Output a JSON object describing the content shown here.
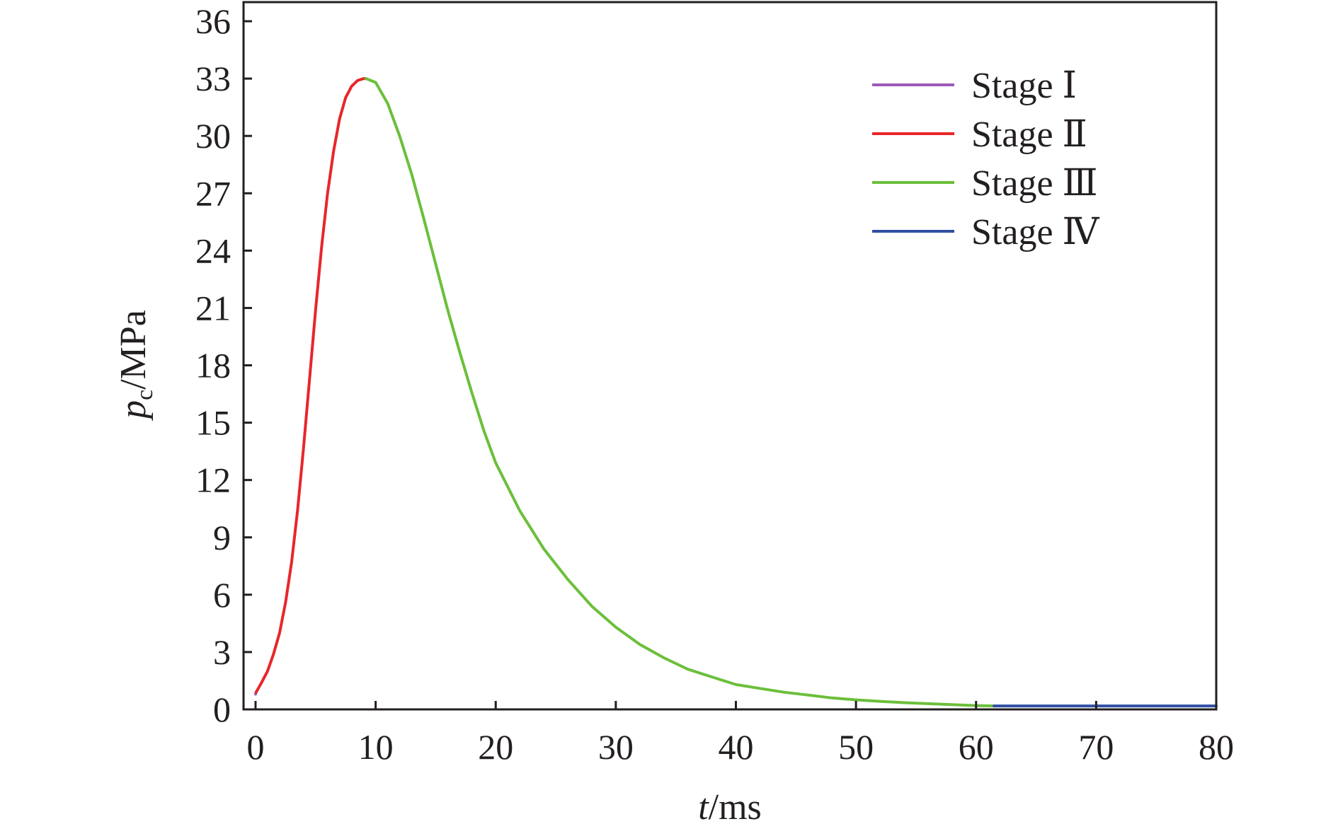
{
  "chart_data": {
    "type": "line",
    "title": "",
    "xlabel": {
      "var": "t",
      "unit": "/ms"
    },
    "ylabel": {
      "var": "p",
      "sub": "c",
      "unit": "/MPa"
    },
    "xlim": [
      -1,
      80
    ],
    "ylim": [
      0,
      37
    ],
    "x_ticks": [
      0,
      10,
      20,
      30,
      40,
      50,
      60,
      70,
      80
    ],
    "y_ticks": [
      0,
      3,
      6,
      9,
      12,
      15,
      18,
      21,
      24,
      27,
      30,
      33,
      36
    ],
    "grid": false,
    "legend_position": "top-right",
    "series": [
      {
        "name": "Stage Ⅰ",
        "color": "#9b59b6",
        "x": [
          0,
          0.05
        ],
        "y": [
          0.8,
          0.9
        ]
      },
      {
        "name": "Stage Ⅱ",
        "color": "#e8262a",
        "x": [
          0.05,
          0.5,
          1,
          1.5,
          2,
          2.5,
          3,
          3.5,
          4,
          4.5,
          5,
          5.5,
          6,
          6.5,
          7,
          7.5,
          8,
          8.5,
          9,
          9.2
        ],
        "y": [
          0.9,
          1.4,
          2.0,
          2.9,
          4.0,
          5.6,
          7.7,
          10.4,
          13.7,
          17.3,
          20.9,
          24.2,
          27.0,
          29.2,
          30.9,
          32.0,
          32.6,
          32.9,
          33.0,
          33.0
        ]
      },
      {
        "name": "Stage Ⅲ",
        "color": "#6bbf3b",
        "x": [
          9.2,
          10,
          11,
          12,
          13,
          14,
          15,
          16,
          17,
          18,
          19,
          20,
          22,
          24,
          26,
          28,
          30,
          32,
          34,
          36,
          38,
          40,
          42,
          44,
          46,
          48,
          50,
          52,
          54,
          56,
          58,
          60,
          61.5
        ],
        "y": [
          33.0,
          32.8,
          31.7,
          30.0,
          28.0,
          25.7,
          23.3,
          20.9,
          18.7,
          16.6,
          14.6,
          12.9,
          10.4,
          8.4,
          6.8,
          5.4,
          4.3,
          3.4,
          2.7,
          2.1,
          1.7,
          1.3,
          1.1,
          0.9,
          0.75,
          0.6,
          0.5,
          0.42,
          0.35,
          0.3,
          0.25,
          0.2,
          0.18
        ]
      },
      {
        "name": "Stage Ⅳ",
        "color": "#2f4fa3",
        "x": [
          61.5,
          65,
          70,
          75,
          80
        ],
        "y": [
          0.18,
          0.18,
          0.18,
          0.18,
          0.18
        ]
      }
    ]
  }
}
